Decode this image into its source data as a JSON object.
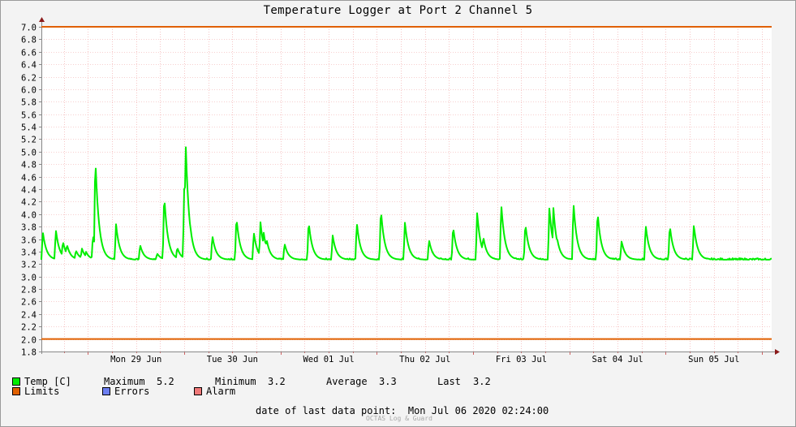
{
  "chart_data": {
    "type": "line",
    "title": "Temperature Logger at Port 2 Channel 5",
    "ylim": [
      1.8,
      7.0
    ],
    "ytick_labels": [
      "1.8",
      "2.0",
      "2.2",
      "2.4",
      "2.6",
      "2.8",
      "3.0",
      "3.2",
      "3.4",
      "3.6",
      "3.8",
      "4.0",
      "4.2",
      "4.4",
      "4.6",
      "4.8",
      "5.0",
      "5.2",
      "5.4",
      "5.6",
      "5.8",
      "6.0",
      "6.2",
      "6.4",
      "6.6",
      "6.8",
      "7.0"
    ],
    "xlim": [
      "2020-06-28T12:24",
      "2020-07-06T02:24"
    ],
    "xtick_labels": [
      "Mon 29 Jun",
      "Tue 30 Jun",
      "Wed 01 Jul",
      "Thu 02 Jul",
      "Fri 03 Jul",
      "Sat 04 Jul",
      "Sun 05 Jul"
    ],
    "grid": true,
    "limits": {
      "upper": 7.0,
      "lower": 2.0,
      "color": "#e06000"
    },
    "series": [
      {
        "name": "Temp [C]",
        "color": "#00ee00",
        "baseline": 3.27,
        "peaks": [
          [
            "2020-06-28T12:45",
            3.72
          ],
          [
            "2020-06-28T16:00",
            3.75
          ],
          [
            "2020-06-28T17:45",
            3.57
          ],
          [
            "2020-06-28T18:45",
            3.52
          ],
          [
            "2020-06-28T21:00",
            3.42
          ],
          [
            "2020-06-28T22:30",
            3.45
          ],
          [
            "2020-06-28T23:30",
            3.4
          ],
          [
            "2020-06-29T01:15",
            3.67
          ],
          [
            "2020-06-29T01:50",
            4.93
          ],
          [
            "2020-06-29T07:00",
            3.84
          ],
          [
            "2020-06-29T13:00",
            3.51
          ],
          [
            "2020-06-29T17:15",
            3.37
          ],
          [
            "2020-06-29T19:00",
            4.32
          ],
          [
            "2020-06-29T22:15",
            3.47
          ],
          [
            "2020-06-30T00:00",
            4.43
          ],
          [
            "2020-06-30T00:20",
            5.2
          ],
          [
            "2020-06-30T01:00",
            4.05
          ],
          [
            "2020-06-30T01:30",
            3.82
          ],
          [
            "2020-06-30T07:00",
            3.66
          ],
          [
            "2020-06-30T13:00",
            3.96
          ],
          [
            "2020-06-30T17:20",
            3.71
          ],
          [
            "2020-06-30T19:00",
            3.87
          ],
          [
            "2020-06-30T19:45",
            3.73
          ],
          [
            "2020-06-30T20:30",
            3.61
          ],
          [
            "2020-07-01T01:00",
            3.53
          ],
          [
            "2020-07-01T07:00",
            3.89
          ],
          [
            "2020-07-01T13:00",
            3.66
          ],
          [
            "2020-07-01T19:00",
            3.87
          ],
          [
            "2020-07-02T01:00",
            4.09
          ],
          [
            "2020-07-02T07:00",
            3.87
          ],
          [
            "2020-07-02T13:00",
            3.59
          ],
          [
            "2020-07-02T19:00",
            3.81
          ],
          [
            "2020-07-03T01:00",
            4.03
          ],
          [
            "2020-07-03T02:30",
            3.65
          ],
          [
            "2020-07-03T07:00",
            4.17
          ],
          [
            "2020-07-03T13:00",
            3.86
          ],
          [
            "2020-07-03T19:00",
            4.11
          ],
          [
            "2020-07-03T20:00",
            4.1
          ],
          [
            "2020-07-03T21:00",
            3.59
          ],
          [
            "2020-07-04T01:00",
            4.19
          ],
          [
            "2020-07-04T07:00",
            4.05
          ],
          [
            "2020-07-04T13:00",
            3.57
          ],
          [
            "2020-07-04T19:00",
            3.83
          ],
          [
            "2020-07-05T01:00",
            3.83
          ],
          [
            "2020-07-05T07:00",
            3.83
          ]
        ]
      }
    ]
  },
  "legend": {
    "temp_label": "Temp [C]",
    "maximum_label": "Maximum",
    "maximum_value": "5.2",
    "minimum_label": "Minimum",
    "minimum_value": "3.2",
    "average_label": "Average",
    "average_value": "3.3",
    "last_label": "Last",
    "last_value": "3.2",
    "limits_label": "Limits",
    "errors_label": "Errors",
    "alarm_label": "Alarm",
    "colors": {
      "temp": "#00ee00",
      "limits": "#e06000",
      "errors": "#6c7ef0",
      "alarm": "#f07878"
    }
  },
  "footer": {
    "label": "date of last data point:",
    "value": "Mon Jul 06 2020 02:24:00"
  },
  "watermark": "OCTAS Log & Guard"
}
